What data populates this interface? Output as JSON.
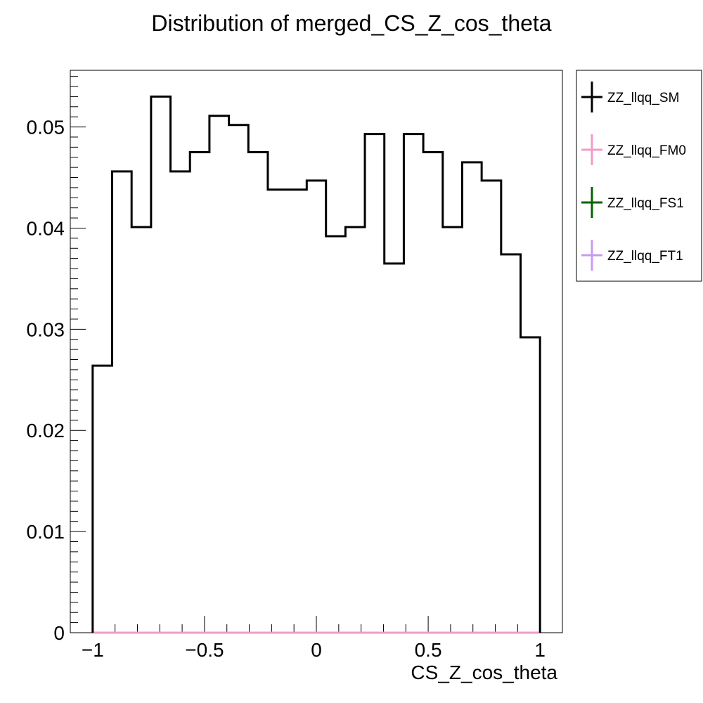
{
  "chart_data": {
    "type": "line",
    "title": "Distribution of merged_CS_Z_cos_theta",
    "xlabel": "CS_Z_cos_theta",
    "ylabel": "",
    "xlim": [
      -1.1,
      1.1
    ],
    "ylim": [
      0,
      0.0556
    ],
    "x_ticks": [
      -1,
      -0.5,
      0,
      0.5,
      1
    ],
    "x_tick_labels": [
      "−1",
      "−0.5",
      "0",
      "0.5",
      "1"
    ],
    "y_ticks": [
      0,
      0.01,
      0.02,
      0.03,
      0.04,
      0.05
    ],
    "y_tick_labels": [
      "0",
      "0.01",
      "0.02",
      "0.03",
      "0.04",
      "0.05"
    ],
    "bin_edges": [
      -1.0,
      -0.913,
      -0.826,
      -0.739,
      -0.652,
      -0.565,
      -0.478,
      -0.391,
      -0.304,
      -0.217,
      -0.13,
      -0.043,
      0.043,
      0.13,
      0.217,
      0.304,
      0.391,
      0.478,
      0.565,
      0.652,
      0.739,
      0.826,
      0.913,
      1.0
    ],
    "series": [
      {
        "name": "ZZ_llqq_SM",
        "color": "#000000",
        "values": [
          0.0264,
          0.0456,
          0.0401,
          0.053,
          0.0456,
          0.0475,
          0.0511,
          0.0502,
          0.0475,
          0.0438,
          0.0438,
          0.0447,
          0.0392,
          0.0401,
          0.0493,
          0.0365,
          0.0493,
          0.0475,
          0.0401,
          0.0465,
          0.0447,
          0.0374,
          0.0292
        ]
      },
      {
        "name": "ZZ_llqq_FM0",
        "color": "#f29bc8",
        "values": [
          0,
          0,
          0,
          0,
          0,
          0,
          0,
          0,
          0,
          0,
          0,
          0,
          0,
          0,
          0,
          0,
          0,
          0,
          0,
          0,
          0,
          0,
          0
        ]
      },
      {
        "name": "ZZ_llqq_FS1",
        "color": "#006400",
        "values": [
          0,
          0,
          0,
          0,
          0,
          0,
          0,
          0,
          0,
          0,
          0,
          0,
          0,
          0,
          0,
          0,
          0,
          0,
          0,
          0,
          0,
          0,
          0
        ]
      },
      {
        "name": "ZZ_llqq_FT1",
        "color": "#c89bf0",
        "values": [
          0,
          0,
          0,
          0,
          0,
          0,
          0,
          0,
          0,
          0,
          0,
          0,
          0,
          0,
          0,
          0,
          0,
          0,
          0,
          0,
          0,
          0,
          0
        ]
      }
    ],
    "legend_position": "right",
    "grid": false
  }
}
